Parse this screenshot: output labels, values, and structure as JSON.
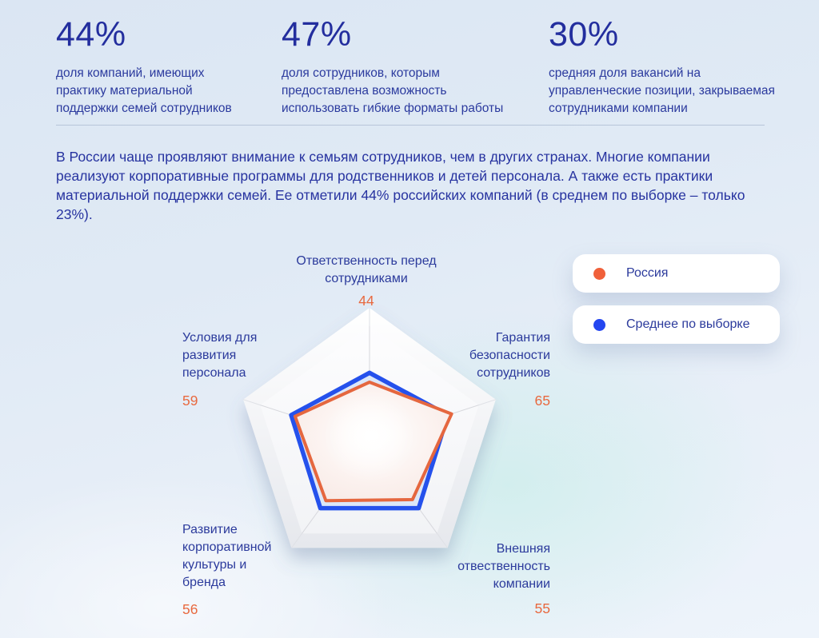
{
  "stats": [
    {
      "value": "44%",
      "description": "доля компаний, имеющих практику материальной поддержки семей сотрудников"
    },
    {
      "value": "47%",
      "description": "доля сотрудников, которым предоставлена возможность использовать гибкие форматы работы"
    },
    {
      "value": "30%",
      "description": "средняя доля вакансий на управленческие позиции, закрываемая сотрудниками компании"
    }
  ],
  "paragraph": "В России чаще проявляют внимание к семьям сотрудников, чем в других странах. Многие компании реализуют корпоративные программы для родственников и детей персонала. А также есть практики материальной поддержки семей. Ее отметили 44% российских компаний (в среднем по выборке – только 23%).",
  "legend": [
    {
      "label": "Россия",
      "color": "#f0603a"
    },
    {
      "label": "Среднее по выборке",
      "color": "#2446f0"
    }
  ],
  "colors": {
    "navy_text": "#2b3a9c",
    "orange_accent": "#e8693f",
    "blue_series": "#2551ec",
    "orange_series": "#e5673f"
  },
  "chart_data": {
    "type": "radar",
    "title": "",
    "scale_max": 100,
    "grid": "pentagon",
    "legend_position": "right",
    "axes": [
      {
        "label": "Ответственность перед сотрудниками",
        "value": 44
      },
      {
        "label": "Гарантия безопасности сотрудников",
        "value": 65
      },
      {
        "label": "Внешняя отвественность компании",
        "value": 55
      },
      {
        "label": "Развитие корпоративной культуры и бренда",
        "value": 56
      },
      {
        "label": "Условия для развития персонала",
        "value": 59
      }
    ],
    "series": [
      {
        "name": "Россия",
        "color": "#e5673f",
        "values": [
          44,
          65,
          55,
          56,
          59
        ],
        "values_labeled": true
      },
      {
        "name": "Среднее по выборке",
        "color": "#2551ec",
        "values": [
          51,
          62,
          63,
          63,
          62
        ],
        "values_labeled": false,
        "estimated_from_pixels": true
      }
    ]
  }
}
